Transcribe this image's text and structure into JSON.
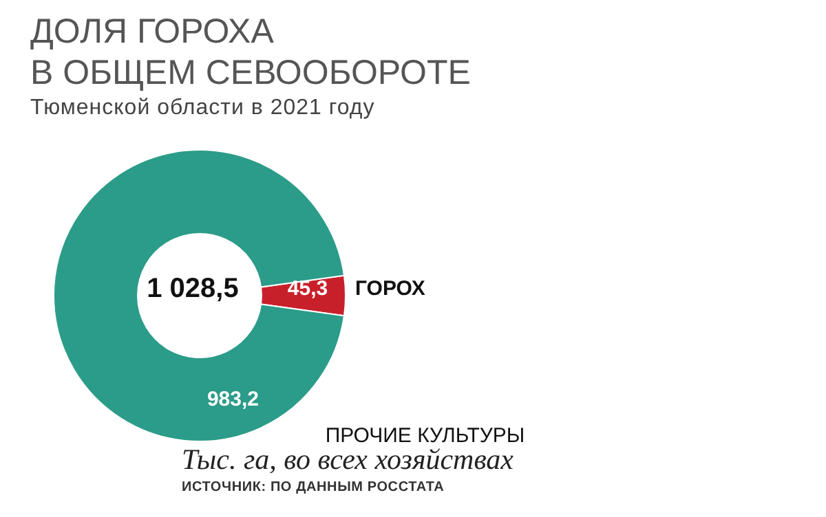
{
  "chart_data": {
    "type": "donut",
    "title": "ДОЛЯ ГОРОХА\nВ ОБЩЕМ СЕВООБОРОТЕ",
    "subtitle": "Тюменской области в 2021 году",
    "categories": [
      "ГОРОХ",
      "ПРОЧИЕ КУЛЬТУРЫ"
    ],
    "values": [
      45.3,
      983.2
    ],
    "value_labels": [
      "45,3",
      "983,2"
    ],
    "colors": [
      "#c8202a",
      "#2b9c89"
    ],
    "legend": false,
    "annotations": [
      "1 028,5",
      "Тыс. га, во всех хозяйствах",
      "ИСТОЧНИК: ПО ДАННЫМ РОССТАТА"
    ]
  }
}
